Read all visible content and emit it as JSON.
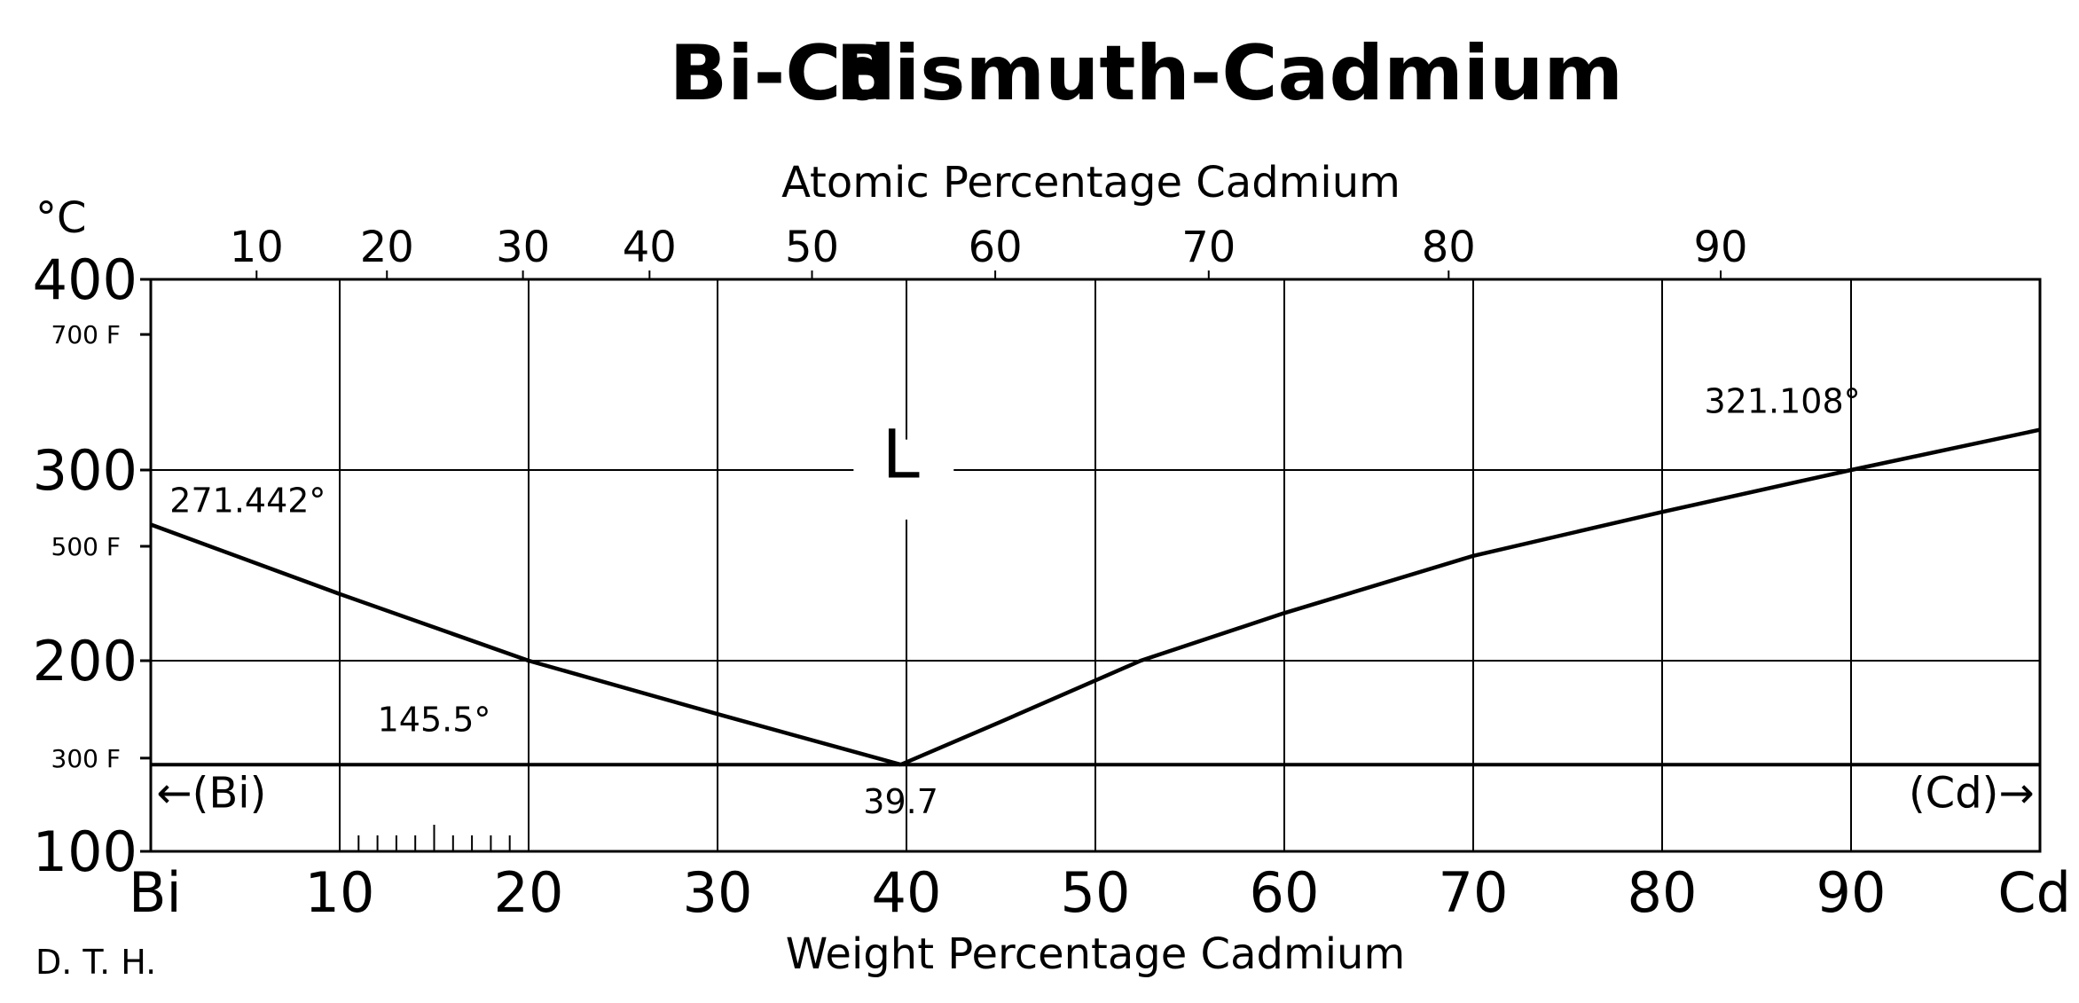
{
  "chart_data": {
    "type": "line",
    "title": "Bi-Cd",
    "subtitle": "Bismuth-Cadmium",
    "xlabel": "Weight Percentage Cadmium",
    "x2label": "Atomic Percentage Cadmium",
    "ylabel": "°C",
    "xlim": [
      0,
      100
    ],
    "ylim": [
      100,
      400
    ],
    "grid": true,
    "x_tick_labels": [
      "Bi",
      "10",
      "20",
      "30",
      "40",
      "50",
      "60",
      "70",
      "80",
      "90",
      "Cd"
    ],
    "x_tick_values": [
      0,
      10,
      20,
      30,
      40,
      50,
      60,
      70,
      80,
      90,
      100
    ],
    "top_ticks": [
      {
        "label": "10",
        "wt": 5.6
      },
      {
        "label": "20",
        "wt": 12.5
      },
      {
        "label": "30",
        "wt": 19.7
      },
      {
        "label": "40",
        "wt": 26.4
      },
      {
        "label": "50",
        "wt": 35.0
      },
      {
        "label": "60",
        "wt": 44.7
      },
      {
        "label": "70",
        "wt": 56.0
      },
      {
        "label": "80",
        "wt": 68.7
      },
      {
        "label": "90",
        "wt": 83.1
      }
    ],
    "y_ticks": [
      {
        "label": "400",
        "value": 400
      },
      {
        "label": "300",
        "value": 300
      },
      {
        "label": "200",
        "value": 200
      },
      {
        "label": "100",
        "value": 100
      }
    ],
    "f_ticks": [
      {
        "label": "700 F",
        "value": 371.1
      },
      {
        "label": "500 F",
        "value": 260.0
      },
      {
        "label": "300 F",
        "value": 148.9
      }
    ],
    "series": [
      {
        "values": [
          [
            0,
            271.4
          ],
          [
            10,
            235
          ],
          [
            20,
            200
          ],
          [
            30,
            172
          ],
          [
            39.7,
            145.5
          ]
        ]
      },
      {
        "values": [
          [
            39.7,
            145.5
          ],
          [
            45,
            168
          ],
          [
            52.4,
            200
          ],
          [
            60,
            225
          ],
          [
            70,
            255
          ],
          [
            80,
            278
          ],
          [
            90,
            300
          ],
          [
            100,
            321.1
          ]
        ]
      },
      {
        "values": [
          [
            0,
            145.5
          ],
          [
            100,
            145.5
          ]
        ]
      }
    ],
    "annotations": [
      {
        "text": "271.442°",
        "x": 1.0,
        "y": 278
      },
      {
        "text": "321.108°",
        "x": 90.5,
        "y": 330
      },
      {
        "text": "145.5°",
        "x": 12,
        "y": 163
      },
      {
        "text": "39.7",
        "x": 39.7,
        "y": 120
      },
      {
        "text": "L",
        "x": 39.7,
        "y": 296
      },
      {
        "text": "←(Bi)",
        "x": 0.3,
        "y": 123
      },
      {
        "text": "(Cd)→",
        "x": 99.7,
        "y": 123
      }
    ],
    "author": "D. T. H."
  }
}
